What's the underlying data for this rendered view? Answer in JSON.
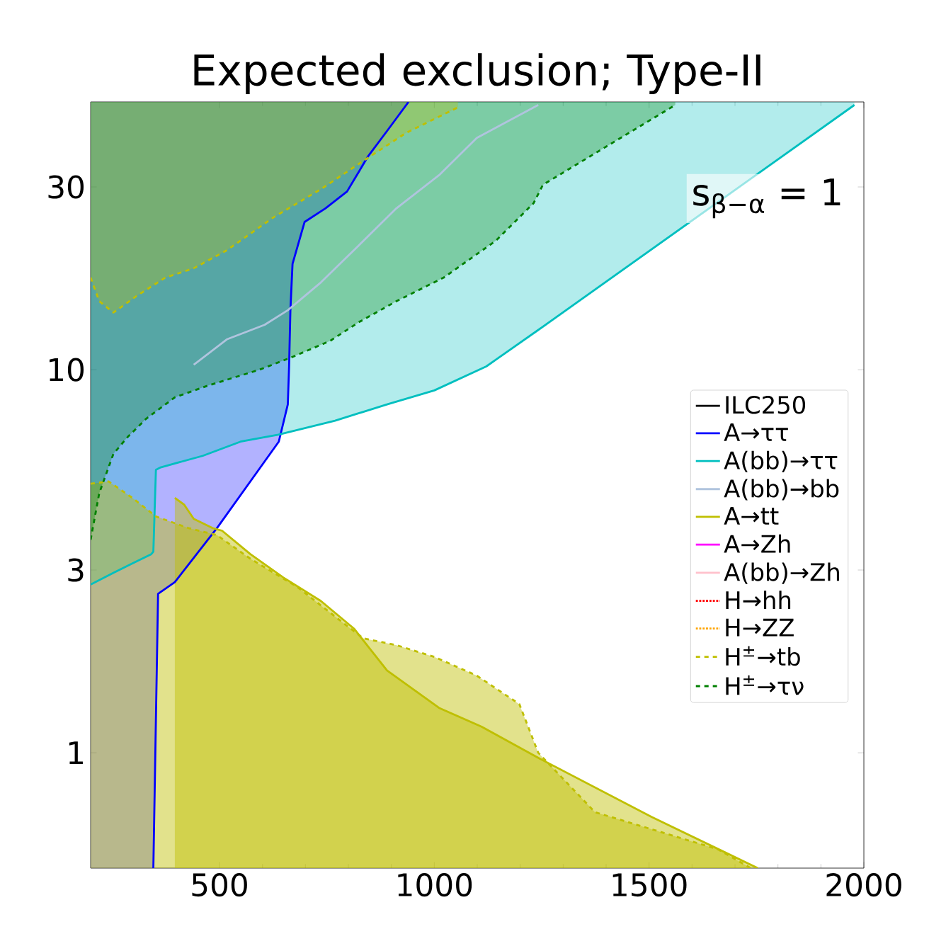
{
  "chart_data": {
    "type": "line",
    "title": "Expected exclusion; Type-II",
    "log": "y",
    "xlim": [
      200,
      2000
    ],
    "ylim": [
      0.5,
      50
    ],
    "xticks": [
      500,
      1000,
      1500,
      2000
    ],
    "yticks": [
      1,
      3,
      10,
      30
    ],
    "legend": "right",
    "annotations": [
      "s$_{β−α}$ = 1"
    ],
    "series": [
      {
        "name": "ILC250",
        "color": "#000000"
      },
      {
        "name": "A→ττ",
        "color": "#0000ff",
        "x": [
          200,
          346,
          357,
          396,
          494,
          638,
          659,
          662,
          665,
          670,
          698,
          747,
          797,
          846,
          890,
          940
        ],
        "values": [
          null,
          0.5,
          2.6,
          2.79,
          3.86,
          6.49,
          8.12,
          10.2,
          14.3,
          18.9,
          24.3,
          26.4,
          29.2,
          36.1,
          42.0,
          50
        ],
        "lower": [
          0.5,
          0.5,
          2.6,
          2.79,
          3.86,
          6.49,
          8.12,
          10.2,
          14.3,
          18.9,
          24.3,
          26.4,
          29.2,
          36.1,
          42.0,
          50
        ],
        "upper": [
          50,
          50,
          50,
          50,
          50,
          50,
          50,
          50,
          50,
          50,
          50,
          50,
          50,
          50,
          50,
          50
        ]
      },
      {
        "name": "A(bb)→ττ",
        "color": "#00bfbf",
        "x": [
          200,
          253,
          297,
          341,
          346,
          352,
          363,
          461,
          549,
          637,
          769,
          890,
          1000,
          1121,
          1242,
          1978
        ],
        "values": [
          2.75,
          2.95,
          3.12,
          3.3,
          3.35,
          5.48,
          5.56,
          5.96,
          6.49,
          6.77,
          7.36,
          8.12,
          8.83,
          10.2,
          12.7,
          49.1
        ],
        "lower": [
          2.75,
          2.95,
          3.12,
          3.3,
          3.35,
          5.48,
          5.56,
          5.96,
          6.49,
          6.77,
          7.36,
          8.12,
          8.83,
          10.2,
          12.7,
          49.1
        ],
        "upper": [
          50,
          50,
          50,
          50,
          50,
          50,
          50,
          50,
          50,
          50,
          50,
          50,
          50,
          50,
          50,
          50
        ]
      },
      {
        "name": "A(bb)→bb",
        "color": "#b0c4de",
        "x": [
          440,
          517,
          605,
          659,
          736,
          824,
          912,
          1011,
          1099,
          1242
        ],
        "values": [
          10.3,
          12.0,
          13.1,
          14.3,
          16.9,
          21.1,
          26.4,
          32.2,
          40.3,
          49.1
        ]
      },
      {
        "name": "A→tt",
        "color": "#bfbf00",
        "type": "area",
        "x": [
          396,
          418,
          440,
          484,
          506,
          572,
          648,
          736,
          813,
          890,
          1011,
          1110,
          1242,
          1506,
          1753
        ],
        "values": [
          4.63,
          4.44,
          4.08,
          3.86,
          3.8,
          3.3,
          2.87,
          2.49,
          2.11,
          1.64,
          1.31,
          1.17,
          0.97,
          0.68,
          0.5
        ]
      },
      {
        "name": "A→Zh",
        "color": "#ff00ff"
      },
      {
        "name": "A(bb)→Zh",
        "color": "#ffc0cb"
      },
      {
        "name": "H→hh",
        "color": "#ff0000",
        "line_style": "dotted"
      },
      {
        "name": "H→ZZ",
        "color": "#ffa500",
        "line_style": "dotted"
      },
      {
        "name": "H$^{±}$→tb",
        "color": "#bfbf00",
        "line_style": "dashed",
        "type": "area",
        "x": [
          200,
          242,
          297,
          352,
          428,
          494,
          572,
          681,
          791,
          835,
          912,
          1000,
          1099,
          1198,
          1242,
          1374,
          1660,
          1737
        ],
        "values": [
          5.04,
          5.11,
          4.63,
          4.14,
          3.86,
          3.7,
          3.21,
          2.71,
          2.17,
          1.99,
          1.91,
          1.78,
          1.59,
          1.34,
          1.0,
          0.7,
          0.56,
          0.5
        ]
      },
      {
        "name": "H$^{±}$→τν",
        "color": "#008000",
        "line_style": "dashed",
        "x": [
          200,
          220,
          253,
          286,
          330,
          396,
          473,
          593,
          670,
          758,
          824,
          912,
          1022,
          1143,
          1231,
          1253,
          1561
        ],
        "values": [
          3.6,
          4.76,
          6.03,
          6.67,
          7.46,
          8.47,
          9.09,
          10.0,
          10.8,
          11.9,
          13.3,
          15.1,
          17.4,
          21.7,
          27.2,
          30.4,
          49.1
        ],
        "lower": [
          3.6,
          4.76,
          6.03,
          6.67,
          7.46,
          8.47,
          9.09,
          10.0,
          10.8,
          11.9,
          13.3,
          15.1,
          17.4,
          21.7,
          27.2,
          30.4,
          49.1
        ],
        "upper": [
          50,
          50,
          50,
          50,
          50,
          50,
          50,
          50,
          50,
          50,
          50,
          50,
          50,
          50,
          50,
          50,
          50
        ]
      },
      {
        "color": "#bfbf00",
        "line_style": "dashed",
        "x": [
          200,
          220,
          253,
          308,
          374,
          440,
          517,
          626,
          736,
          835,
          934,
          1055
        ],
        "values": [
          17.4,
          15.1,
          14.1,
          15.6,
          17.4,
          18.4,
          20.5,
          25.0,
          29.6,
          35.1,
          41.5,
          48.4
        ],
        "lower": [
          17.4,
          15.1,
          14.1,
          15.6,
          17.4,
          18.4,
          20.5,
          25.0,
          29.6,
          35.1,
          41.5,
          48.4
        ],
        "upper": [
          50,
          50,
          50,
          50,
          50,
          50,
          50,
          50,
          50,
          50,
          50,
          50
        ]
      }
    ]
  }
}
